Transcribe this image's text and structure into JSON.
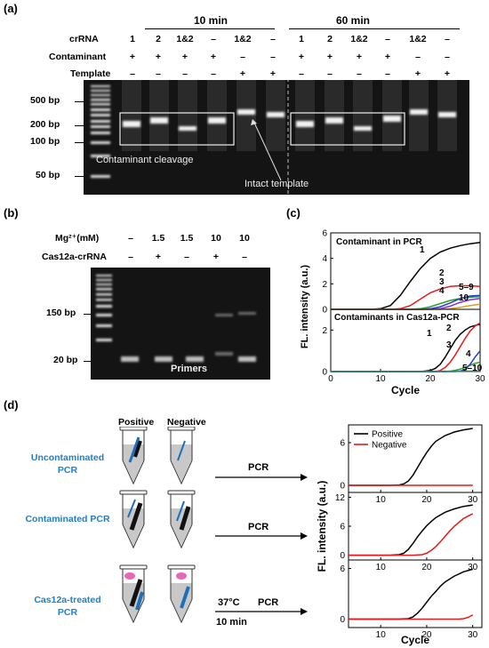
{
  "panels": {
    "a": {
      "label": "(a)",
      "groups": [
        "10 min",
        "60 min"
      ],
      "row_labels": [
        "crRNA",
        "Contaminant",
        "Template"
      ],
      "crRNA": [
        "1",
        "2",
        "1&2",
        "–",
        "1&2",
        "–",
        "1",
        "2",
        "1&2",
        "–",
        "1&2",
        "–"
      ],
      "contaminant": [
        "+",
        "+",
        "+",
        "+",
        "–",
        "–",
        "+",
        "+",
        "+",
        "+",
        "–",
        "–"
      ],
      "template": [
        "–",
        "–",
        "–",
        "–",
        "+",
        "+",
        "–",
        "–",
        "–",
        "–",
        "+",
        "+"
      ],
      "markers": [
        "500 bp",
        "200 bp",
        "100 bp",
        "50 bp"
      ],
      "annotations": {
        "cleavage": "Contaminant cleavage",
        "intact": "Intact template"
      }
    },
    "b": {
      "label": "(b)",
      "row_labels": [
        "Mg²⁺(mM)",
        "Cas12a-crRNA"
      ],
      "mg": [
        "–",
        "1.5",
        "1.5",
        "10",
        "10"
      ],
      "cas": [
        "–",
        "+",
        "–",
        "+",
        "–"
      ],
      "markers": [
        "150 bp",
        "20 bp"
      ],
      "annotation": "Primers"
    },
    "c": {
      "label": "(c)",
      "ylabel": "FL. intensity (a.u.)",
      "xlabel": "Cycle",
      "top_title": "Contaminant in PCR",
      "bottom_title": "Contaminants in Cas12a-PCR",
      "top_curve_labels": [
        "1",
        "2",
        "3",
        "4",
        "5–9",
        "10"
      ],
      "bottom_curve_labels": [
        "1",
        "2",
        "3",
        "4",
        "5–10"
      ]
    },
    "d": {
      "label": "(d)",
      "col_labels": [
        "Positive",
        "Negative"
      ],
      "rows": [
        "Uncontaminated PCR",
        "Contaminated PCR",
        "Cas12a-treated PCR"
      ],
      "step_label": "PCR",
      "incubation": [
        "37°C",
        "10 min"
      ],
      "ylabel": "FL. intensity (a.u.)",
      "xlabel": "Cycle",
      "legend": [
        "Positive",
        "Negative"
      ]
    }
  },
  "chart_data": [
    {
      "type": "line",
      "title": "Contaminant in PCR",
      "xlabel": "Cycle",
      "ylabel": "FL. intensity (a.u.)",
      "xlim": [
        0,
        30
      ],
      "ylim": [
        0,
        6
      ],
      "xticks": [
        0,
        10,
        20,
        30
      ],
      "yticks": [
        0,
        2,
        4,
        6
      ],
      "series": [
        {
          "name": "1",
          "color": "#000000",
          "x": [
            0,
            8,
            10,
            12,
            14,
            16,
            18,
            20,
            22,
            24,
            26,
            28,
            30
          ],
          "y": [
            0,
            0,
            0.05,
            0.3,
            1.1,
            2.2,
            3.2,
            4.0,
            4.5,
            4.8,
            5.0,
            5.15,
            5.25
          ]
        },
        {
          "name": "2",
          "color": "#e41a1c",
          "x": [
            0,
            12,
            14,
            16,
            18,
            20,
            22,
            24,
            26,
            28,
            30
          ],
          "y": [
            0,
            0,
            0.05,
            0.3,
            0.8,
            1.3,
            1.6,
            1.8,
            1.85,
            1.85,
            1.8
          ]
        },
        {
          "name": "3",
          "color": "#2ca02c",
          "x": [
            0,
            16,
            18,
            20,
            22,
            24,
            26,
            28,
            30
          ],
          "y": [
            0,
            0,
            0.05,
            0.2,
            0.45,
            0.7,
            0.85,
            0.95,
            1.0
          ]
        },
        {
          "name": "4",
          "color": "#1f3fd0",
          "x": [
            0,
            18,
            20,
            22,
            24,
            26,
            28,
            30
          ],
          "y": [
            0,
            0,
            0.05,
            0.2,
            0.5,
            0.85,
            1.05,
            1.1
          ]
        },
        {
          "name": "5–9",
          "color": "#8a2be2",
          "x": [
            0,
            20,
            22,
            24,
            26,
            28,
            30
          ],
          "y": [
            0,
            0,
            0.05,
            0.25,
            0.55,
            0.75,
            0.85
          ]
        },
        {
          "name": "10",
          "color": "#d4a017",
          "x": [
            0,
            22,
            24,
            26,
            28,
            30
          ],
          "y": [
            0,
            0,
            0.05,
            0.15,
            0.3,
            0.4
          ]
        }
      ]
    },
    {
      "type": "line",
      "title": "Contaminants in Cas12a-PCR",
      "xlabel": "Cycle",
      "ylabel": "FL. intensity (a.u.)",
      "xlim": [
        0,
        30
      ],
      "ylim": [
        0,
        3
      ],
      "xticks": [
        0,
        10,
        20,
        30
      ],
      "yticks": [
        0,
        2
      ],
      "series": [
        {
          "name": "1",
          "color": "#000000",
          "x": [
            0,
            18,
            20,
            21,
            22,
            23,
            24,
            25,
            26,
            27,
            28,
            29,
            30
          ],
          "y": [
            0,
            0,
            0.05,
            0.15,
            0.35,
            0.7,
            1.1,
            1.5,
            1.8,
            2.0,
            2.15,
            2.22,
            2.28
          ]
        },
        {
          "name": "2",
          "color": "#e41a1c",
          "x": [
            0,
            21,
            22,
            23,
            24,
            25,
            26,
            27,
            28,
            29,
            30
          ],
          "y": [
            0,
            0,
            0.05,
            0.2,
            0.45,
            0.8,
            1.2,
            1.6,
            1.95,
            2.2,
            2.35
          ]
        },
        {
          "name": "3",
          "color": "#2ca02c",
          "x": [
            0,
            23,
            24,
            25,
            26,
            27,
            28,
            29,
            30
          ],
          "y": [
            0,
            0,
            0.02,
            0.06,
            0.12,
            0.2,
            0.3,
            0.4,
            0.45
          ]
        },
        {
          "name": "4",
          "color": "#1f3fd0",
          "x": [
            0,
            25,
            26,
            27,
            28,
            29,
            30
          ],
          "y": [
            0,
            0,
            0.02,
            0.1,
            0.35,
            0.7,
            1.0
          ]
        },
        {
          "name": "5–10",
          "color": "#2e8b57",
          "x": [
            0,
            30
          ],
          "y": [
            0,
            0.02
          ]
        }
      ]
    },
    {
      "type": "line",
      "title": "Uncontaminated PCR",
      "xlabel": "Cycle",
      "ylabel": "FL. intensity (a.u.)",
      "xlim": [
        3,
        32
      ],
      "ylim": [
        -1,
        8.5
      ],
      "xticks": [
        10,
        20,
        30
      ],
      "yticks": [
        0,
        6
      ],
      "series": [
        {
          "name": "Positive",
          "color": "#000000",
          "x": [
            3,
            12,
            14,
            15,
            16,
            17,
            18,
            19,
            20,
            21,
            22,
            24,
            26,
            28,
            30
          ],
          "y": [
            0,
            0,
            0.05,
            0.2,
            0.6,
            1.4,
            2.5,
            3.6,
            4.6,
            5.5,
            6.2,
            7.0,
            7.5,
            7.8,
            8.0
          ]
        },
        {
          "name": "Negative",
          "color": "#e41a1c",
          "x": [
            3,
            30
          ],
          "y": [
            0,
            0
          ]
        }
      ]
    },
    {
      "type": "line",
      "title": "Contaminated PCR",
      "xlabel": "Cycle",
      "ylabel": "FL. intensity (a.u.)",
      "xlim": [
        3,
        32
      ],
      "ylim": [
        -1,
        13
      ],
      "xticks": [
        10,
        20,
        30
      ],
      "yticks": [
        0,
        6,
        12
      ],
      "series": [
        {
          "name": "Positive",
          "color": "#000000",
          "x": [
            3,
            12,
            14,
            15,
            16,
            17,
            18,
            19,
            20,
            21,
            22,
            24,
            26,
            28,
            30
          ],
          "y": [
            0,
            0,
            0.1,
            0.4,
            1.2,
            2.4,
            3.8,
            5.0,
            6.1,
            7.0,
            7.8,
            8.9,
            9.6,
            10.1,
            10.4
          ]
        },
        {
          "name": "Negative",
          "color": "#e41a1c",
          "x": [
            3,
            17,
            19,
            20,
            21,
            22,
            23,
            24,
            25,
            26,
            28,
            30
          ],
          "y": [
            0,
            0,
            0.1,
            0.4,
            1.0,
            1.8,
            2.8,
            3.9,
            5.0,
            6.0,
            7.6,
            8.6
          ]
        }
      ]
    },
    {
      "type": "line",
      "title": "Cas12a-treated PCR",
      "xlabel": "Cycle",
      "ylabel": "FL. intensity (a.u.)",
      "xlim": [
        3,
        32
      ],
      "ylim": [
        -1,
        7
      ],
      "xticks": [
        10,
        20,
        30
      ],
      "yticks": [
        0,
        6
      ],
      "series": [
        {
          "name": "Positive",
          "color": "#000000",
          "x": [
            3,
            14,
            16,
            17,
            18,
            19,
            20,
            21,
            22,
            23,
            24,
            26,
            28,
            30
          ],
          "y": [
            0,
            0,
            0.05,
            0.25,
            0.7,
            1.3,
            2.0,
            2.7,
            3.3,
            3.9,
            4.4,
            5.1,
            5.6,
            5.9
          ]
        },
        {
          "name": "Negative",
          "color": "#e41a1c",
          "x": [
            3,
            27,
            28,
            29,
            30
          ],
          "y": [
            0,
            0,
            0.05,
            0.2,
            0.5
          ]
        }
      ]
    }
  ]
}
